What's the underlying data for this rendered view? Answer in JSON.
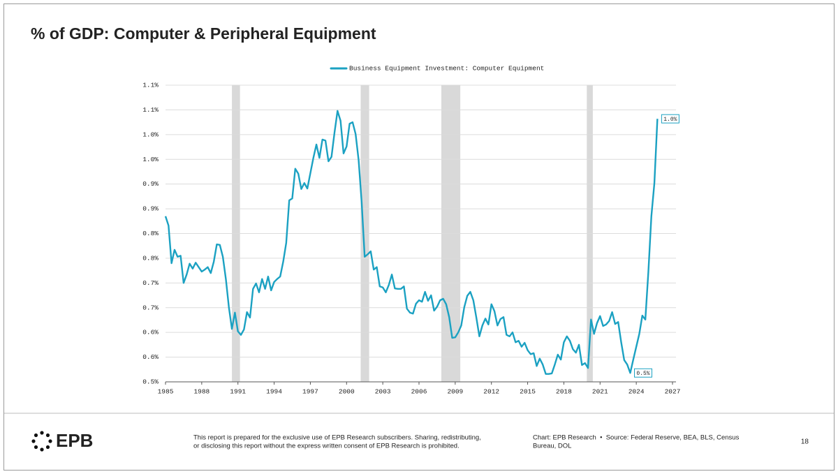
{
  "chart_data": {
    "type": "line",
    "title": "% of GDP: Computer & Peripheral Equipment",
    "legend": "top",
    "grid": true,
    "xlim": [
      1985,
      2027
    ],
    "xticks": [
      1985,
      1988,
      1991,
      1994,
      1997,
      2000,
      2003,
      2006,
      2009,
      2012,
      2015,
      2018,
      2021,
      2024,
      2027
    ],
    "ylim": [
      0.5,
      1.1
    ],
    "yticks": [
      {
        "value": 0.5,
        "label": "0.5%"
      },
      {
        "value": 0.55,
        "label": "0.6%"
      },
      {
        "value": 0.6,
        "label": "0.6%"
      },
      {
        "value": 0.65,
        "label": "0.7%"
      },
      {
        "value": 0.7,
        "label": "0.7%"
      },
      {
        "value": 0.75,
        "label": "0.8%"
      },
      {
        "value": 0.8,
        "label": "0.8%"
      },
      {
        "value": 0.85,
        "label": "0.9%"
      },
      {
        "value": 0.9,
        "label": "0.9%"
      },
      {
        "value": 0.95,
        "label": "1.0%"
      },
      {
        "value": 1.0,
        "label": "1.0%"
      },
      {
        "value": 1.05,
        "label": "1.1%"
      },
      {
        "value": 1.1,
        "label": "1.1%"
      }
    ],
    "recessions": [
      [
        1990.5,
        1991.17
      ],
      [
        2001.17,
        2001.87
      ],
      [
        2007.85,
        2009.42
      ],
      [
        2019.9,
        2020.4
      ]
    ],
    "recession_color": "#d9d9d9",
    "x": [
      1985,
      1985.25,
      1985.5,
      1985.75,
      1986,
      1986.25,
      1986.5,
      1986.75,
      1987,
      1987.25,
      1987.5,
      1987.75,
      1988,
      1988.25,
      1988.5,
      1988.75,
      1989,
      1989.25,
      1989.5,
      1989.75,
      1990,
      1990.25,
      1990.5,
      1990.75,
      1991,
      1991.25,
      1991.5,
      1991.75,
      1992,
      1992.25,
      1992.5,
      1992.75,
      1993,
      1993.25,
      1993.5,
      1993.75,
      1994,
      1994.25,
      1994.5,
      1994.75,
      1995,
      1995.25,
      1995.5,
      1995.75,
      1996,
      1996.25,
      1996.5,
      1996.75,
      1997,
      1997.25,
      1997.5,
      1997.75,
      1998,
      1998.25,
      1998.5,
      1998.75,
      1999,
      1999.25,
      1999.5,
      1999.75,
      2000,
      2000.25,
      2000.5,
      2000.75,
      2001,
      2001.25,
      2001.5,
      2001.75,
      2002,
      2002.25,
      2002.5,
      2002.75,
      2003,
      2003.25,
      2003.5,
      2003.75,
      2004,
      2004.25,
      2004.5,
      2004.75,
      2005,
      2005.25,
      2005.5,
      2005.75,
      2006,
      2006.25,
      2006.5,
      2006.75,
      2007,
      2007.25,
      2007.5,
      2007.75,
      2008,
      2008.25,
      2008.5,
      2008.75,
      2009,
      2009.25,
      2009.5,
      2009.75,
      2010,
      2010.25,
      2010.5,
      2010.75,
      2011,
      2011.25,
      2011.5,
      2011.75,
      2012,
      2012.25,
      2012.5,
      2012.75,
      2013,
      2013.25,
      2013.5,
      2013.75,
      2014,
      2014.25,
      2014.5,
      2014.75,
      2015,
      2015.25,
      2015.5,
      2015.75,
      2016,
      2016.25,
      2016.5,
      2016.75,
      2017,
      2017.25,
      2017.5,
      2017.75,
      2018,
      2018.25,
      2018.5,
      2018.75,
      2019,
      2019.25,
      2019.5,
      2019.75,
      2020,
      2020.25,
      2020.5,
      2020.75,
      2021,
      2021.25,
      2021.5,
      2021.75,
      2022,
      2022.25,
      2022.5,
      2022.75,
      2023,
      2023.25,
      2023.5,
      2023.75,
      2024,
      2024.25,
      2024.5,
      2024.75,
      2025,
      2025.25,
      2025.5,
      2025.75
    ],
    "series": [
      {
        "name": "Business Equipment Investment: Computer Equipment",
        "color": "#1ba1c2",
        "values": [
          0.835,
          0.816,
          0.74,
          0.767,
          0.753,
          0.755,
          0.7,
          0.717,
          0.739,
          0.729,
          0.741,
          0.732,
          0.723,
          0.727,
          0.732,
          0.72,
          0.743,
          0.778,
          0.777,
          0.753,
          0.708,
          0.651,
          0.607,
          0.64,
          0.602,
          0.595,
          0.606,
          0.641,
          0.63,
          0.688,
          0.699,
          0.681,
          0.708,
          0.688,
          0.713,
          0.685,
          0.702,
          0.708,
          0.713,
          0.743,
          0.781,
          0.867,
          0.871,
          0.931,
          0.921,
          0.89,
          0.902,
          0.891,
          0.922,
          0.953,
          0.98,
          0.953,
          0.99,
          0.988,
          0.946,
          0.955,
          1.004,
          1.048,
          1.028,
          0.962,
          0.976,
          1.022,
          1.025,
          1.001,
          0.948,
          0.863,
          0.753,
          0.758,
          0.764,
          0.727,
          0.732,
          0.693,
          0.691,
          0.681,
          0.696,
          0.717,
          0.689,
          0.688,
          0.688,
          0.693,
          0.648,
          0.64,
          0.638,
          0.658,
          0.665,
          0.662,
          0.682,
          0.664,
          0.675,
          0.644,
          0.652,
          0.665,
          0.668,
          0.657,
          0.631,
          0.589,
          0.59,
          0.6,
          0.614,
          0.651,
          0.674,
          0.682,
          0.665,
          0.63,
          0.592,
          0.614,
          0.628,
          0.616,
          0.657,
          0.643,
          0.614,
          0.627,
          0.631,
          0.595,
          0.592,
          0.6,
          0.58,
          0.583,
          0.571,
          0.579,
          0.564,
          0.556,
          0.558,
          0.532,
          0.547,
          0.535,
          0.516,
          0.516,
          0.517,
          0.535,
          0.555,
          0.545,
          0.58,
          0.592,
          0.583,
          0.566,
          0.559,
          0.575,
          0.534,
          0.538,
          0.528,
          0.626,
          0.597,
          0.619,
          0.633,
          0.613,
          0.616,
          0.623,
          0.641,
          0.617,
          0.621,
          0.58,
          0.544,
          0.535,
          0.518,
          0.545,
          0.571,
          0.597,
          0.634,
          0.626,
          0.722,
          0.835,
          0.902,
          1.032
        ]
      }
    ],
    "annotations": [
      {
        "x": 2025.75,
        "y": 1.032,
        "label": "1.0%"
      },
      {
        "x": 2023.5,
        "y": 0.518,
        "label": "0.5%"
      }
    ]
  },
  "footer": {
    "brand": "EPB",
    "disclaimer": [
      "This report is prepared for the exclusive use of EPB Research subscribers. Sharing, redistributing,",
      "or disclosing this report without the express written consent of EPB Research is prohibited."
    ],
    "source": [
      "Chart: EPB Research  •  Source: Federal Reserve, BEA, BLS, Census",
      "Bureau, DOL"
    ],
    "page_number": "18"
  }
}
